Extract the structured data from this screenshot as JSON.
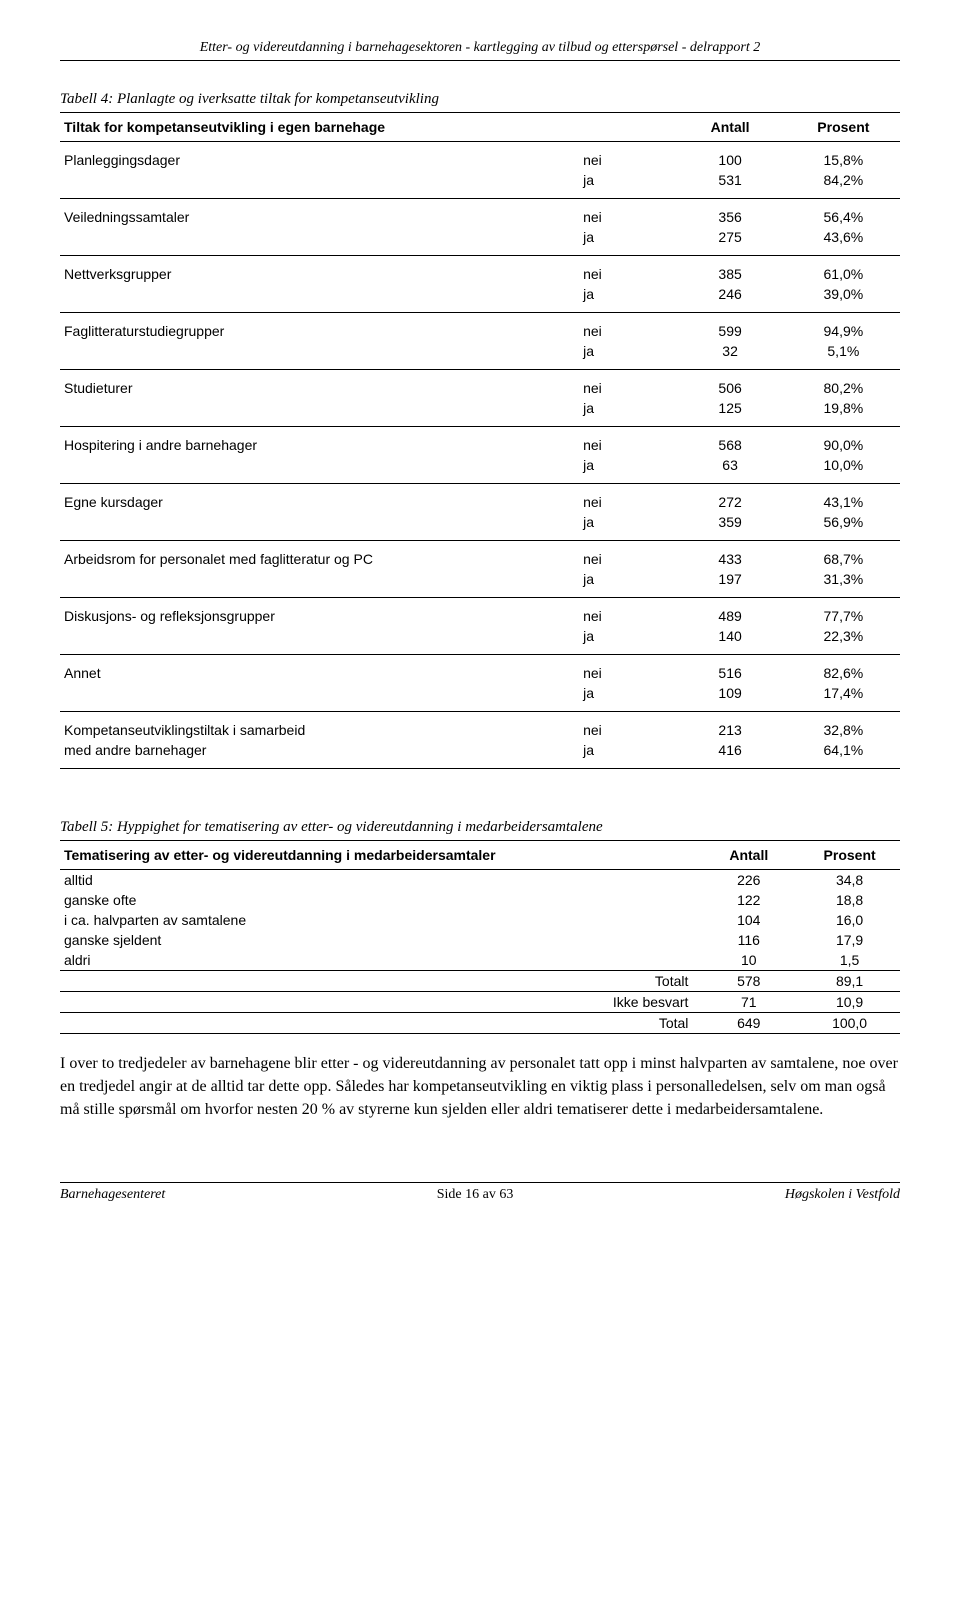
{
  "header": "Etter- og videreutdanning i barnehagesektoren - kartlegging av tilbud og etterspørsel - delrapport 2",
  "table4": {
    "caption": "Tabell 4: Planlagte og iverksatte tiltak for kompetanseutvikling",
    "head": {
      "c1": "Tiltak for kompetanseutvikling i egen barnehage",
      "c2": "",
      "c3": "Antall",
      "c4": "Prosent"
    },
    "rows": [
      {
        "label": "Planleggingsdager",
        "sub1": "nei",
        "n1": "100",
        "p1": "15,8%",
        "sub2": "ja",
        "n2": "531",
        "p2": "84,2%"
      },
      {
        "label": "Veiledningssamtaler",
        "sub1": "nei",
        "n1": "356",
        "p1": "56,4%",
        "sub2": "ja",
        "n2": "275",
        "p2": "43,6%"
      },
      {
        "label": "Nettverksgrupper",
        "sub1": "nei",
        "n1": "385",
        "p1": "61,0%",
        "sub2": "ja",
        "n2": "246",
        "p2": "39,0%"
      },
      {
        "label": "Faglitteraturstudiegrupper",
        "sub1": "nei",
        "n1": "599",
        "p1": "94,9%",
        "sub2": "ja",
        "n2": "32",
        "p2": "5,1%"
      },
      {
        "label": "Studieturer",
        "sub1": "nei",
        "n1": "506",
        "p1": "80,2%",
        "sub2": "ja",
        "n2": "125",
        "p2": "19,8%"
      },
      {
        "label": "Hospitering i andre barnehager",
        "sub1": "nei",
        "n1": "568",
        "p1": "90,0%",
        "sub2": "ja",
        "n2": "63",
        "p2": "10,0%"
      },
      {
        "label": "Egne kursdager",
        "sub1": "nei",
        "n1": "272",
        "p1": "43,1%",
        "sub2": "ja",
        "n2": "359",
        "p2": "56,9%"
      },
      {
        "label": "Arbeidsrom for personalet med faglitteratur og PC",
        "sub1": "nei",
        "n1": "433",
        "p1": "68,7%",
        "sub2": "ja",
        "n2": "197",
        "p2": "31,3%"
      },
      {
        "label": "Diskusjons- og refleksjonsgrupper",
        "sub1": "nei",
        "n1": "489",
        "p1": "77,7%",
        "sub2": "ja",
        "n2": "140",
        "p2": "22,3%"
      },
      {
        "label": "Annet",
        "sub1": "nei",
        "n1": "516",
        "p1": "82,6%",
        "sub2": "ja",
        "n2": "109",
        "p2": "17,4%"
      },
      {
        "label": "Kompetanseutviklingstiltak i samarbeid",
        "label2": "med andre barnehager",
        "sub1": "nei",
        "n1": "213",
        "p1": "32,8%",
        "sub2": "ja",
        "n2": "416",
        "p2": "64,1%"
      }
    ]
  },
  "table5": {
    "caption": "Tabell 5: Hyppighet for tematisering av etter- og videreutdanning i medarbeidersamtalene",
    "head": {
      "c1": "Tematisering av etter- og videreutdanning i medarbeidersamtaler",
      "c2": "Antall",
      "c3": "Prosent"
    },
    "rows": [
      {
        "label": "alltid",
        "sub": "",
        "n": "226",
        "p": "34,8"
      },
      {
        "label": "ganske ofte",
        "sub": "",
        "n": "122",
        "p": "18,8"
      },
      {
        "label": "i ca. halvparten av samtalene",
        "sub": "",
        "n": "104",
        "p": "16,0"
      },
      {
        "label": "ganske sjeldent",
        "sub": "",
        "n": "116",
        "p": "17,9"
      },
      {
        "label": "aldri",
        "sub": "",
        "n": "10",
        "p": "1,5"
      }
    ],
    "totals": [
      {
        "label": "",
        "sub": "Totalt",
        "n": "578",
        "p": "89,1"
      },
      {
        "label": "",
        "sub": "Ikke besvart",
        "n": "71",
        "p": "10,9"
      },
      {
        "label": "",
        "sub": "Total",
        "n": "649",
        "p": "100,0"
      }
    ]
  },
  "paragraph": "I over to tredjedeler av barnehagene blir etter - og videreutdanning av personalet tatt opp i minst halvparten av samtalene, noe over en tredjedel angir at de alltid tar dette opp. Således har kompetanseutvikling en viktig plass i personalledelsen, selv om man også må stille spørsmål om hvorfor nesten 20 % av styrerne kun sjelden eller aldri tematiserer dette i medarbeidersamtalene.",
  "footer": {
    "left": "Barnehagesenteret",
    "center": "Side 16 av 63",
    "right": "Høgskolen i Vestfold"
  }
}
